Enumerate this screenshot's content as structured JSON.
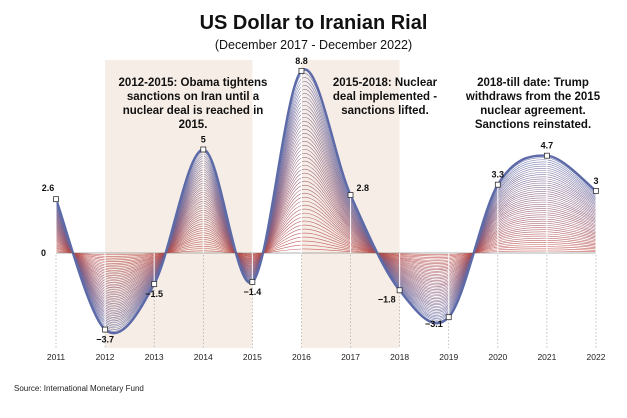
{
  "chart_data": {
    "type": "line",
    "title": "US Dollar to Iranian Rial",
    "subtitle": "(December 2017 - December 2022)",
    "x": [
      2011,
      2012,
      2013,
      2014,
      2015,
      2016,
      2017,
      2018,
      2019,
      2020,
      2021,
      2022
    ],
    "values": [
      2.6,
      -3.7,
      -1.5,
      5,
      -1.4,
      8.8,
      2.8,
      -1.8,
      -3.1,
      3.3,
      4.7,
      3
    ],
    "zero_label": "0",
    "xlim": [
      2011,
      2022
    ],
    "ylim": [
      -3.7,
      8.8
    ],
    "grid": false,
    "shaded_periods": [
      {
        "start": 2012,
        "end": 2015,
        "color": "#f6ede6"
      },
      {
        "start": 2016,
        "end": 2018,
        "color": "#f6ede6"
      }
    ],
    "annotations": [
      {
        "id": "annot-1",
        "text": "2012-2015: Obama tightens sanctions on Iran until a nuclear deal is reached in 2015."
      },
      {
        "id": "annot-2",
        "text": "2015-2018: Nuclear deal implemented - sanctions lifted."
      },
      {
        "id": "annot-3",
        "text": "2018-till date: Trump withdraws from the 2015 nuclear agreement. Sanctions reinstated."
      }
    ],
    "source": "Source: International Monetary Fund",
    "colors": {
      "primary": "#5d6aa8",
      "secondary": "#c0463d",
      "marker_fill": "#ffffff",
      "zero_line": "#666666"
    }
  }
}
